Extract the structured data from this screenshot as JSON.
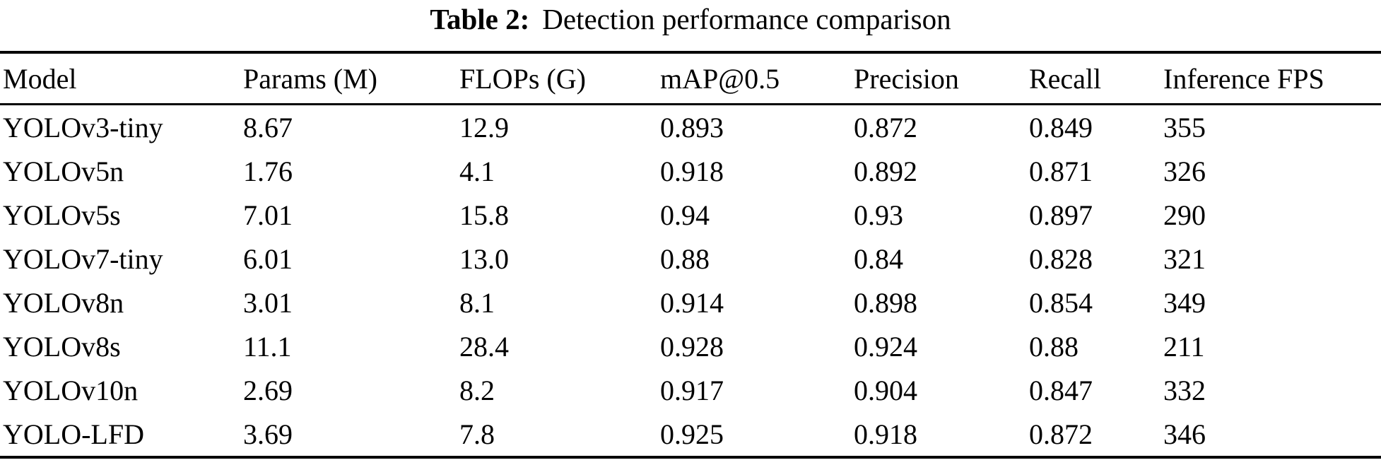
{
  "caption": {
    "label": "Table 2:",
    "text": "Detection performance comparison"
  },
  "table": {
    "columns": [
      "Model",
      "Params (M)",
      "FLOPs (G)",
      "mAP@0.5",
      "Precision",
      "Recall",
      "Inference FPS"
    ],
    "rows": [
      [
        "YOLOv3-tiny",
        "8.67",
        "12.9",
        "0.893",
        "0.872",
        "0.849",
        "355"
      ],
      [
        "YOLOv5n",
        "1.76",
        "4.1",
        "0.918",
        "0.892",
        "0.871",
        "326"
      ],
      [
        "YOLOv5s",
        "7.01",
        "15.8",
        "0.94",
        "0.93",
        "0.897",
        "290"
      ],
      [
        "YOLOv7-tiny",
        "6.01",
        "13.0",
        "0.88",
        "0.84",
        "0.828",
        "321"
      ],
      [
        "YOLOv8n",
        "3.01",
        "8.1",
        "0.914",
        "0.898",
        "0.854",
        "349"
      ],
      [
        "YOLOv8s",
        "11.1",
        "28.4",
        "0.928",
        "0.924",
        "0.88",
        "211"
      ],
      [
        "YOLOv10n",
        "2.69",
        "8.2",
        "0.917",
        "0.904",
        "0.847",
        "332"
      ],
      [
        "YOLO-LFD",
        "3.69",
        "7.8",
        "0.925",
        "0.918",
        "0.872",
        "346"
      ]
    ]
  },
  "colors": {
    "text": "#000000",
    "background": "#ffffff",
    "rule": "#000000"
  }
}
